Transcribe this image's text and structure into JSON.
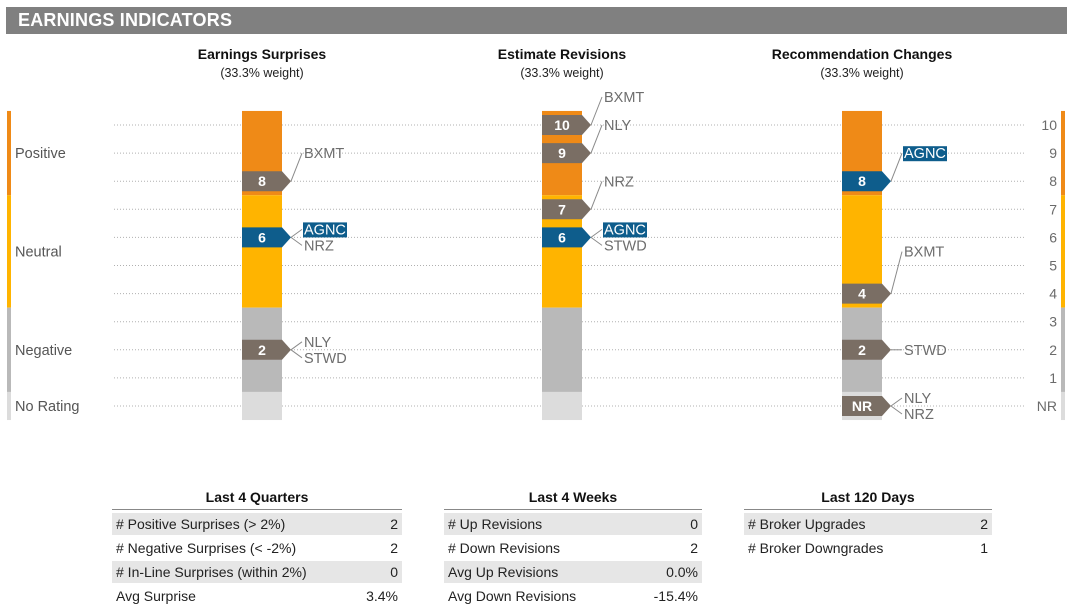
{
  "header": {
    "title": "EARNINGS INDICATORS"
  },
  "chart_data": [
    {
      "type": "bar",
      "title": "Earnings Surprises",
      "subtitle": "(33.3% weight)",
      "markers": [
        {
          "value": 8,
          "label": "8",
          "color": "#7a6e64",
          "tickers": [
            "BXMT"
          ]
        },
        {
          "value": 6,
          "label": "6",
          "color": "#0e5d8c",
          "tickers": [
            "AGNC",
            "NRZ"
          ]
        },
        {
          "value": 2,
          "label": "2",
          "color": "#7a6e64",
          "tickers": [
            "NLY",
            "STWD"
          ]
        }
      ]
    },
    {
      "type": "bar",
      "title": "Estimate Revisions",
      "subtitle": "(33.3% weight)",
      "markers": [
        {
          "value": 10,
          "label": "10",
          "color": "#7a6e64",
          "tickers": [
            "BXMT"
          ]
        },
        {
          "value": 9,
          "label": "9",
          "color": "#7a6e64",
          "tickers": [
            "NLY"
          ]
        },
        {
          "value": 7,
          "label": "7",
          "color": "#7a6e64",
          "tickers": [
            "NRZ"
          ]
        },
        {
          "value": 6,
          "label": "6",
          "color": "#0e5d8c",
          "tickers": [
            "AGNC",
            "STWD"
          ]
        }
      ]
    },
    {
      "type": "bar",
      "title": "Recommendation Changes",
      "subtitle": "(33.3% weight)",
      "markers": [
        {
          "value": 8,
          "label": "8",
          "color": "#0e5d8c",
          "tickers": [
            "AGNC"
          ]
        },
        {
          "value": 4,
          "label": "4",
          "color": "#7a6e64",
          "tickers": [
            "BXMT"
          ]
        },
        {
          "value": 2,
          "label": "2",
          "color": "#7a6e64",
          "tickers": [
            "STWD"
          ]
        },
        {
          "value": 0,
          "label": "NR",
          "color": "#7a6e64",
          "tickers": [
            "NLY",
            "NRZ"
          ]
        }
      ]
    }
  ],
  "scale": {
    "ticks": [
      "NR",
      "1",
      "2",
      "3",
      "4",
      "5",
      "6",
      "7",
      "8",
      "9",
      "10"
    ],
    "zones": [
      {
        "name": "Positive",
        "from": 7.5,
        "to": 10.5,
        "color": "#ef8a17"
      },
      {
        "name": "Neutral",
        "from": 3.5,
        "to": 7.5,
        "color": "#ffb400"
      },
      {
        "name": "Negative",
        "from": 0.5,
        "to": 3.5,
        "color": "#b9b9b9"
      },
      {
        "name": "No Rating",
        "from": -0.5,
        "to": 0.5,
        "color": "#dcdcdc"
      }
    ],
    "highlight_ticker": "AGNC",
    "highlight_color": "#0e5d8c"
  },
  "tables": [
    {
      "title": "Last 4 Quarters",
      "rows": [
        {
          "label": "# Positive Surprises (> 2%)",
          "value": "2"
        },
        {
          "label": "# Negative Surprises (< -2%)",
          "value": "2"
        },
        {
          "label": "# In-Line Surprises (within 2%)",
          "value": "0"
        },
        {
          "label": "Avg Surprise",
          "value": "3.4%"
        }
      ]
    },
    {
      "title": "Last 4 Weeks",
      "rows": [
        {
          "label": "# Up Revisions",
          "value": "0"
        },
        {
          "label": "# Down Revisions",
          "value": "2"
        },
        {
          "label": "Avg Up Revisions",
          "value": "0.0%"
        },
        {
          "label": "Avg Down Revisions",
          "value": "-15.4%"
        }
      ]
    },
    {
      "title": "Last 120 Days",
      "rows": [
        {
          "label": "# Broker Upgrades",
          "value": "2"
        },
        {
          "label": "# Broker Downgrades",
          "value": "1"
        }
      ]
    }
  ]
}
